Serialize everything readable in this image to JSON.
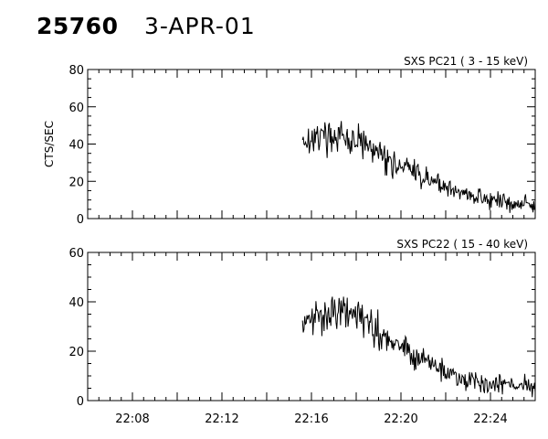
{
  "header": {
    "event_id": "25760",
    "date": "3-APR-01"
  },
  "chart_data": [
    {
      "type": "line",
      "title": "SXS PC21  (  3 - 15 keV)",
      "ylabel": "CTS/SEC",
      "xlabel": "",
      "xlim": [
        "22:06",
        "22:26"
      ],
      "ylim": [
        0,
        80
      ],
      "yticks": [
        0,
        20,
        40,
        60,
        80
      ],
      "xticks": [
        "22:08",
        "22:12",
        "22:16",
        "22:20",
        "22:24"
      ],
      "show_x_tick_labels": false,
      "grid": false,
      "series": [
        {
          "x": [
            "22:15:36",
            "22:16:00",
            "22:16:30",
            "22:17:00",
            "22:17:30",
            "22:18:00",
            "22:18:30",
            "22:19:00",
            "22:19:30",
            "22:20:00",
            "22:20:30",
            "22:21:00",
            "22:21:30",
            "22:22:00",
            "22:22:30",
            "22:23:00",
            "22:23:30",
            "22:24:00",
            "22:24:30",
            "22:25:00",
            "22:25:30",
            "22:26:00"
          ],
          "y": [
            42,
            43,
            44,
            44,
            43,
            41,
            38,
            35,
            31,
            28,
            25,
            22,
            20,
            17,
            15,
            13,
            11,
            10,
            9,
            8,
            8,
            7
          ],
          "noise": 6
        }
      ]
    },
    {
      "type": "line",
      "title": "SXS PC22  ( 15 - 40 keV)",
      "ylabel": "",
      "xlabel": "",
      "xlim": [
        "22:06",
        "22:26"
      ],
      "ylim": [
        0,
        60
      ],
      "yticks": [
        0,
        20,
        40,
        60
      ],
      "xticks": [
        "22:08",
        "22:12",
        "22:16",
        "22:20",
        "22:24"
      ],
      "show_x_tick_labels": true,
      "grid": false,
      "series": [
        {
          "x": [
            "22:15:36",
            "22:16:00",
            "22:16:30",
            "22:17:00",
            "22:17:30",
            "22:18:00",
            "22:18:30",
            "22:19:00",
            "22:19:30",
            "22:20:00",
            "22:20:30",
            "22:21:00",
            "22:21:30",
            "22:22:00",
            "22:22:30",
            "22:23:00",
            "22:23:30",
            "22:24:00",
            "22:24:30",
            "22:25:00",
            "22:25:30",
            "22:26:00"
          ],
          "y": [
            30,
            33,
            35,
            36,
            36,
            35,
            32,
            28,
            25,
            22,
            19,
            16,
            14,
            12,
            10,
            9,
            8,
            7,
            7,
            6,
            6,
            6
          ],
          "noise": 5
        }
      ]
    }
  ]
}
